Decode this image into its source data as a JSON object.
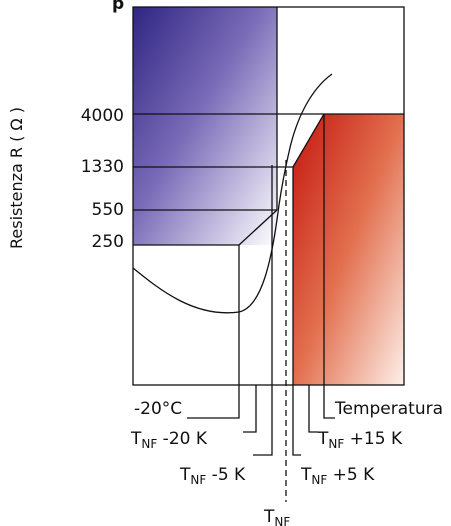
{
  "header": {
    "partial_title_char": "p"
  },
  "y_axis": {
    "title": "Resistenza R ( Ω )",
    "ticks": [
      "4000",
      "1330",
      "550",
      "250"
    ]
  },
  "x_labels": {
    "minus20c": "-20°C",
    "temperatura": "Temperatura",
    "tnf_prefix": "T",
    "tnf_sub": "NF",
    "minus20k_suffix": " -20 K",
    "minus5k_suffix": " -5 K",
    "plus5k_suffix": " +5 K",
    "plus15k_suffix": " +15 K"
  },
  "colors": {
    "cold_gradient_top": "#3a2b8a",
    "cold_gradient_bottom": "#ffffff",
    "hot_gradient_top": "#c92a1a",
    "hot_gradient_bottom": "#fbe9e2"
  }
}
